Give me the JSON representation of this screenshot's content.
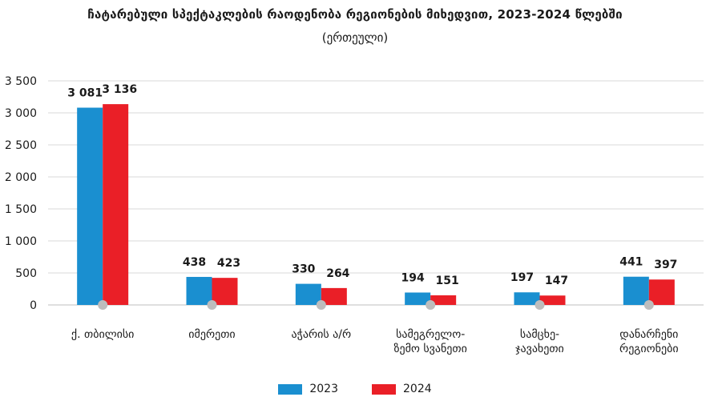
{
  "title": "ჩატარებული სპექტაკლების რაოდენობა რეგიონების მიხედვით, 2023-2024 წლებში",
  "subtitle": "(ერთეული)",
  "chart_data": {
    "type": "bar",
    "categories": [
      [
        "ქ. თბილისი"
      ],
      [
        "იმერეთი"
      ],
      [
        "აჭარის ა/რ"
      ],
      [
        "სამეგრელო-",
        "ზემო სვანეთი"
      ],
      [
        "სამცხე-",
        "ჯავახეთი"
      ],
      [
        "დანარჩენი",
        "რეგიონები"
      ]
    ],
    "series": [
      {
        "name": "2023",
        "color": "#1a8fd0",
        "values": [
          3081,
          438,
          330,
          194,
          197,
          441
        ]
      },
      {
        "name": "2024",
        "color": "#ea1f27",
        "values": [
          3136,
          423,
          264,
          151,
          147,
          397
        ]
      }
    ],
    "data_labels": [
      [
        "3 081",
        "438",
        "330",
        "194",
        "197",
        "441"
      ],
      [
        "3 136",
        "423",
        "264",
        "151",
        "147",
        "397"
      ]
    ],
    "yticks": [
      0,
      500,
      1000,
      1500,
      2000,
      2500,
      3000,
      3500
    ],
    "ytick_labels": [
      "0",
      "500",
      "1 000",
      "1 500",
      "2 000",
      "2 500",
      "3 000",
      "3 500"
    ],
    "ylim": [
      0,
      3500
    ],
    "grid": true,
    "legend": "bottom"
  }
}
